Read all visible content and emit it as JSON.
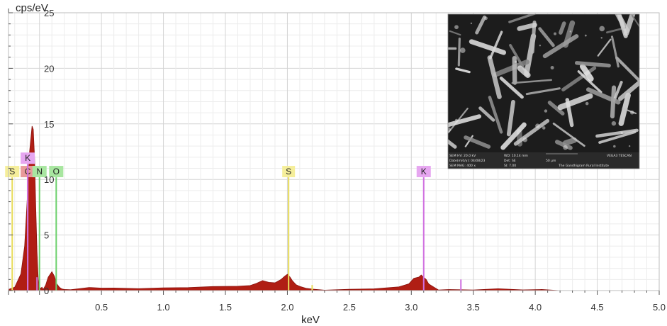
{
  "chart_data": {
    "type": "area",
    "xlabel": "keV",
    "ylabel": "cps/eV",
    "xlim": [
      -0.25,
      5.0
    ],
    "ylim": [
      0,
      25
    ],
    "x_ticks": [
      "0.5",
      "1.0",
      "1.5",
      "2.0",
      "2.5",
      "3.0",
      "3.5",
      "4.0",
      "4.5",
      "5.0"
    ],
    "y_ticks": [
      "0",
      "5",
      "10",
      "15",
      "20",
      "25"
    ],
    "grid": true,
    "fill_color": "#b01e14",
    "spectrum": {
      "x": [
        -0.25,
        -0.2,
        -0.15,
        -0.12,
        -0.1,
        -0.08,
        -0.06,
        -0.05,
        -0.04,
        -0.03,
        -0.02,
        -0.01,
        0.0,
        0.01,
        0.02,
        0.03,
        0.05,
        0.07,
        0.1,
        0.12,
        0.14,
        0.16,
        0.18,
        0.2,
        0.25,
        0.3,
        0.4,
        0.5,
        0.6,
        0.8,
        1.0,
        1.2,
        1.4,
        1.6,
        1.7,
        1.75,
        1.8,
        1.85,
        1.9,
        1.95,
        1.98,
        2.0,
        2.02,
        2.04,
        2.07,
        2.1,
        2.15,
        2.2,
        2.3,
        2.5,
        2.7,
        2.9,
        2.98,
        3.02,
        3.06,
        3.08,
        3.1,
        3.12,
        3.14,
        3.18,
        3.22,
        3.3,
        3.5,
        3.7,
        3.9,
        4.05,
        4.2,
        4.5,
        4.8,
        5.0
      ],
      "y": [
        0.1,
        0.3,
        1.5,
        4.0,
        8.0,
        12.5,
        14.8,
        14.5,
        12.0,
        7.5,
        3.5,
        1.0,
        0.3,
        0.2,
        0.3,
        0.1,
        0.5,
        1.2,
        1.7,
        1.3,
        0.6,
        0.3,
        0.15,
        0.1,
        0.08,
        0.15,
        0.2,
        0.2,
        0.22,
        0.25,
        0.28,
        0.28,
        0.3,
        0.35,
        0.45,
        0.7,
        0.95,
        0.75,
        0.65,
        0.95,
        1.3,
        1.5,
        1.3,
        0.9,
        0.5,
        0.3,
        0.2,
        0.15,
        0.12,
        0.12,
        0.15,
        0.25,
        0.6,
        1.1,
        1.3,
        1.4,
        1.2,
        0.9,
        0.6,
        0.3,
        0.15,
        0.1,
        0.08,
        0.07,
        0.06,
        0.06,
        0.02,
        0.01,
        0.0,
        0.0
      ]
    },
    "element_markers": [
      {
        "label": "S",
        "x": -0.22,
        "height": 10.2,
        "color": "#e8dc5a",
        "box": "#f5ee9a"
      },
      {
        "label": "C",
        "x": -0.095,
        "height": 10.2,
        "color": "#d96a6a",
        "box": "#e89a9a"
      },
      {
        "label": "K",
        "x": -0.095,
        "height": 11.4,
        "color": "#d070e0",
        "box": "#e6a6f0"
      },
      {
        "label": "N",
        "x": 0.0,
        "height": 10.2,
        "color": "#6cd06c",
        "box": "#a8e6a0"
      },
      {
        "label": "O",
        "x": 0.135,
        "height": 10.2,
        "color": "#6cd06c",
        "box": "#a8e6a0"
      },
      {
        "label": "S",
        "x": 2.01,
        "height": 10.2,
        "color": "#e8dc5a",
        "box": "#f5ee9a"
      },
      {
        "label": "K",
        "x": 3.1,
        "height": 10.2,
        "color": "#d070e0",
        "box": "#e6a6f0"
      }
    ],
    "minor_lines": [
      {
        "x": -0.02,
        "height": 1.2,
        "color": "#d070e0"
      },
      {
        "x": 2.2,
        "height": 0.5,
        "color": "#e8dc5a"
      },
      {
        "x": 3.4,
        "height": 1.0,
        "color": "#d070e0"
      }
    ],
    "inset": {
      "rows": [
        [
          "SEM HV: 20.0 kV",
          "WD: 10.14 mm",
          "",
          "VEGA3 TESCAN"
        ],
        [
          "Date(m/d/y): 04/08/23",
          "Det: SE",
          "50 µm",
          ""
        ],
        [
          "SEM MAG: 400 x",
          "SI: 7.00",
          "The Gandhigram Rural Institute",
          ""
        ]
      ]
    }
  }
}
